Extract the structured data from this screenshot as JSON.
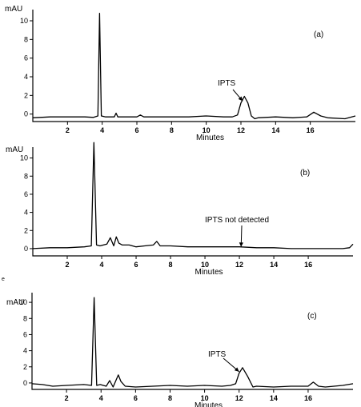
{
  "figure_mark": "e",
  "chart_data": [
    {
      "type": "line",
      "panel_label": "(a)",
      "ylabel": "mAU",
      "xlabel": "Minutes",
      "xlim": [
        0,
        18.6
      ],
      "ylim": [
        -0.8,
        11.2
      ],
      "xticks": [
        2,
        4,
        6,
        8,
        10,
        12,
        14,
        16
      ],
      "yticks": [
        0,
        2,
        4,
        6,
        8,
        10
      ],
      "series": [
        {
          "x": [
            0,
            1,
            2,
            3,
            3.5,
            3.75,
            3.85,
            3.95,
            4.2,
            4.7,
            4.8,
            4.9,
            5.2,
            6,
            6.2,
            6.4,
            7,
            8,
            9,
            10,
            11,
            11.5,
            11.8,
            12.0,
            12.2,
            12.4,
            12.6,
            12.8,
            13,
            14,
            15,
            15.8,
            16.2,
            16.6,
            17,
            18,
            18.6
          ],
          "y": [
            -0.4,
            -0.3,
            -0.3,
            -0.3,
            -0.35,
            -0.2,
            10.8,
            -0.2,
            -0.3,
            -0.3,
            0.1,
            -0.3,
            -0.3,
            -0.3,
            -0.1,
            -0.3,
            -0.3,
            -0.3,
            -0.3,
            -0.2,
            -0.3,
            -0.3,
            -0.1,
            1.2,
            1.9,
            1.2,
            -0.2,
            -0.5,
            -0.4,
            -0.3,
            -0.4,
            -0.3,
            0.2,
            -0.2,
            -0.4,
            -0.5,
            -0.2
          ]
        }
      ],
      "annotations": [
        {
          "text": "IPTS",
          "x": 12.1,
          "y": 1.4
        }
      ]
    },
    {
      "type": "line",
      "panel_label": "(b)",
      "ylabel": "mAU",
      "xlabel": "Minutes",
      "xlim": [
        0,
        18.6
      ],
      "ylim": [
        -0.8,
        11.2
      ],
      "xticks": [
        2,
        4,
        6,
        8,
        10,
        12,
        14,
        16
      ],
      "yticks": [
        0,
        2,
        4,
        6,
        8,
        10
      ],
      "series": [
        {
          "x": [
            0,
            1,
            2,
            3,
            3.4,
            3.55,
            3.7,
            3.9,
            4.3,
            4.5,
            4.7,
            4.85,
            5.0,
            5.2,
            5.6,
            6,
            6.5,
            7,
            7.2,
            7.4,
            8,
            9,
            10,
            11,
            12,
            13,
            14,
            15,
            16,
            17,
            18,
            18.4,
            18.6
          ],
          "y": [
            0.0,
            0.1,
            0.1,
            0.2,
            0.3,
            11.7,
            0.4,
            0.3,
            0.5,
            1.2,
            0.3,
            1.3,
            0.6,
            0.4,
            0.4,
            0.2,
            0.3,
            0.4,
            0.8,
            0.3,
            0.3,
            0.2,
            0.2,
            0.2,
            0.2,
            0.1,
            0.1,
            0.0,
            0.0,
            0.0,
            0.0,
            0.1,
            0.5
          ]
        }
      ],
      "annotations": [
        {
          "text": "IPTS not detected",
          "x": 12.1,
          "y": 0.2
        }
      ]
    },
    {
      "type": "line",
      "panel_label": "(c)",
      "ylabel": "mAU",
      "xlabel": "Minutes",
      "xlim": [
        0,
        18.6
      ],
      "ylim": [
        -0.8,
        11.2
      ],
      "xticks": [
        2,
        4,
        6,
        8,
        10,
        12,
        14,
        16
      ],
      "yticks": [
        0,
        2,
        4,
        6,
        8,
        10
      ],
      "series": [
        {
          "x": [
            0,
            0.6,
            1.2,
            2,
            3,
            3.45,
            3.6,
            3.75,
            3.95,
            4.3,
            4.5,
            4.7,
            5.0,
            5.15,
            5.4,
            6,
            7,
            8,
            9,
            10,
            11,
            11.5,
            11.8,
            12.0,
            12.2,
            12.5,
            12.8,
            13,
            14,
            15,
            16,
            16.3,
            16.6,
            17,
            18,
            18.6
          ],
          "y": [
            -0.1,
            -0.2,
            -0.4,
            -0.3,
            -0.2,
            -0.3,
            10.6,
            -0.3,
            -0.2,
            -0.4,
            0.3,
            -0.5,
            1.0,
            0.2,
            -0.4,
            -0.5,
            -0.4,
            -0.3,
            -0.4,
            -0.3,
            -0.4,
            -0.3,
            -0.1,
            1.2,
            1.9,
            0.8,
            -0.5,
            -0.4,
            -0.5,
            -0.4,
            -0.4,
            0.1,
            -0.4,
            -0.5,
            -0.3,
            -0.1
          ]
        }
      ],
      "annotations": [
        {
          "text": "IPTS",
          "x": 12.0,
          "y": 1.4
        }
      ]
    }
  ]
}
